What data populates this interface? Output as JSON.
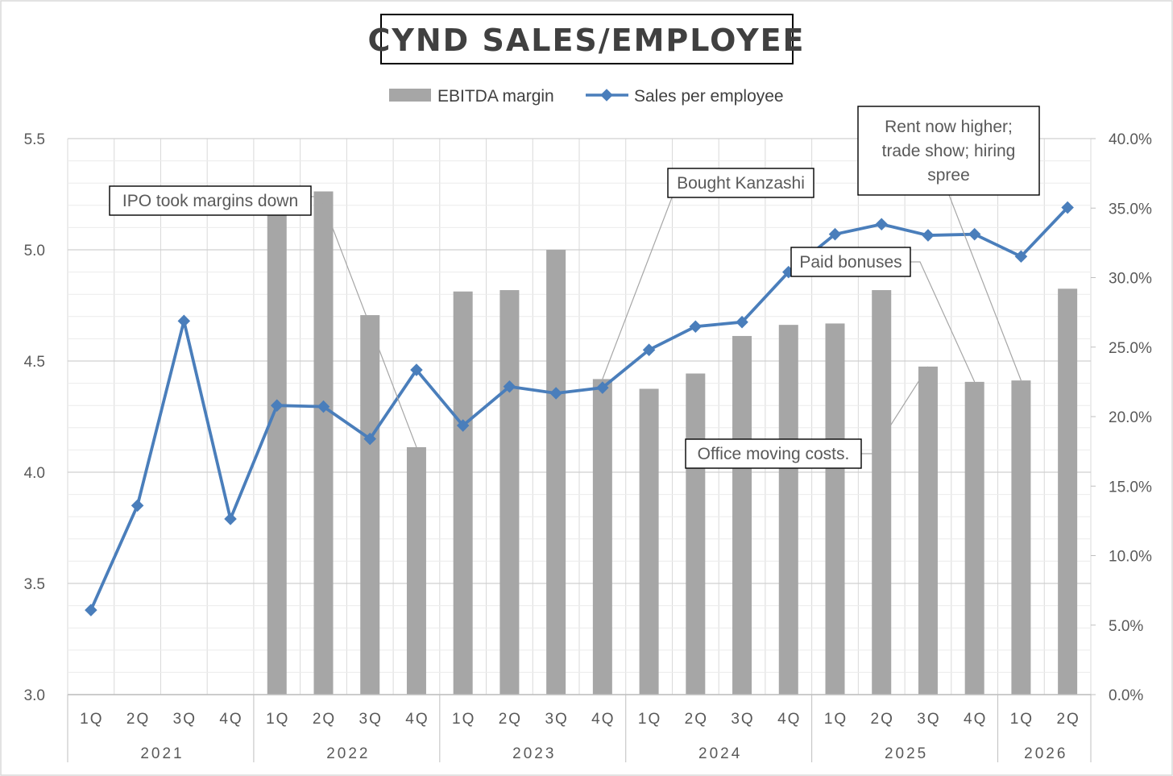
{
  "chart_data": {
    "type": "bar",
    "title": "CYND SALES/EMPLOYEE",
    "legend": {
      "placement": "top",
      "entries": [
        "EBITDA margin",
        "Sales per employee"
      ]
    },
    "categories": [
      "1Q",
      "2Q",
      "3Q",
      "4Q",
      "1Q",
      "2Q",
      "3Q",
      "4Q",
      "1Q",
      "2Q",
      "3Q",
      "4Q",
      "1Q",
      "2Q",
      "3Q",
      "4Q",
      "1Q",
      "2Q",
      "3Q",
      "4Q",
      "1Q",
      "2Q"
    ],
    "groups": [
      {
        "label": "2021",
        "count": 4
      },
      {
        "label": "2022",
        "count": 4
      },
      {
        "label": "2023",
        "count": 4
      },
      {
        "label": "2024",
        "count": 4
      },
      {
        "label": "2025",
        "count": 4
      },
      {
        "label": "2026",
        "count": 2
      }
    ],
    "series": [
      {
        "name": "EBITDA margin",
        "type": "bar",
        "axis": "right",
        "color": "#a6a6a6",
        "values": [
          null,
          null,
          null,
          null,
          0.346,
          0.362,
          0.273,
          0.178,
          0.29,
          0.291,
          0.32,
          0.227,
          0.22,
          0.231,
          0.258,
          0.266,
          0.267,
          0.291,
          0.236,
          0.225,
          0.226,
          0.292
        ]
      },
      {
        "name": "Sales per employee",
        "type": "line",
        "axis": "left",
        "color": "#4a7ebb",
        "values": [
          3.38,
          3.85,
          4.68,
          3.79,
          4.3,
          4.295,
          4.15,
          4.46,
          4.21,
          4.385,
          4.355,
          4.38,
          4.55,
          4.655,
          4.675,
          4.9,
          5.07,
          5.115,
          5.065,
          5.07,
          4.97,
          5.19
        ]
      }
    ],
    "y_left": {
      "min": 3.0,
      "max": 5.5,
      "ticks": [
        "3.0",
        "3.5",
        "4.0",
        "4.5",
        "5.0",
        "5.5"
      ],
      "tick_values": [
        3.0,
        3.5,
        4.0,
        4.5,
        5.0,
        5.5
      ]
    },
    "y_right": {
      "min": 0,
      "max": 0.4,
      "ticks": [
        "0.0%",
        "5.0%",
        "10.0%",
        "15.0%",
        "20.0%",
        "25.0%",
        "30.0%",
        "35.0%",
        "40.0%"
      ],
      "tick_values": [
        0,
        0.05,
        0.1,
        0.15,
        0.2,
        0.25,
        0.3,
        0.35,
        0.4
      ]
    },
    "grid": true,
    "annotations": [
      {
        "lines": [
          "IPO took margins down"
        ],
        "points_to_index": 7
      },
      {
        "lines": [
          "Bought Kanzashi"
        ],
        "points_to_index": 11
      },
      {
        "lines": [
          "Paid bonuses"
        ],
        "points_to_index": 19
      },
      {
        "lines": [
          "Rent now higher;",
          "trade show; hiring",
          "spree"
        ],
        "points_to_index": 20
      },
      {
        "lines": [
          "Office moving costs."
        ],
        "points_to_index": 18
      }
    ]
  }
}
